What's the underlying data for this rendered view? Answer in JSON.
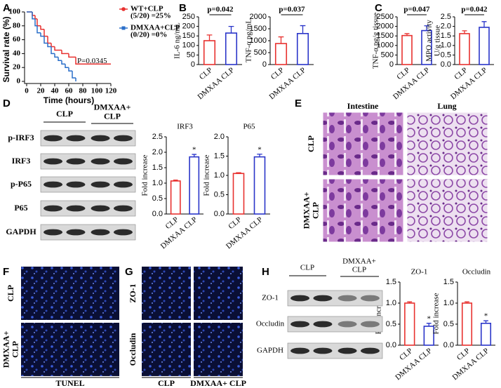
{
  "panel_labels": [
    "A",
    "B",
    "C",
    "D",
    "E",
    "F",
    "G",
    "H"
  ],
  "chart_data": [
    {
      "type": "step",
      "ylabel": "Survival rate (%)",
      "xlabel": "Time (hours)",
      "xlim": [
        0,
        120
      ],
      "ylim": [
        0,
        100
      ],
      "xticks": [
        0,
        20,
        40,
        60,
        80,
        100,
        120
      ],
      "yticks": [
        0,
        20,
        40,
        60,
        80,
        100
      ],
      "annotation": "P=0.0345",
      "series": [
        {
          "name": "WT+CLP",
          "note": "(5/20) =25%",
          "color": "#e8312f",
          "marker": "circle",
          "x": [
            0,
            8,
            12,
            15,
            20,
            25,
            30,
            35,
            40,
            50,
            60,
            70,
            120
          ],
          "values": [
            100,
            95,
            90,
            80,
            75,
            65,
            55,
            50,
            45,
            40,
            35,
            25,
            25
          ]
        },
        {
          "name": "DMXAA+CLP",
          "note": "(0/20) =0%",
          "color": "#2a6fc9",
          "marker": "square",
          "x": [
            0,
            8,
            12,
            15,
            20,
            25,
            30,
            35,
            40,
            45,
            50,
            55,
            60,
            65,
            70
          ],
          "values": [
            100,
            90,
            80,
            70,
            65,
            55,
            50,
            40,
            35,
            30,
            25,
            20,
            15,
            5,
            0
          ]
        }
      ]
    },
    {
      "type": "bar",
      "ylabel": [
        "IL-6 ng/mL"
      ],
      "categories": [
        "CLP",
        "DMXAA CLP"
      ],
      "colors": [
        "#e8312f",
        "#2a35c9"
      ],
      "values": [
        125,
        165
      ],
      "errors": [
        30,
        35
      ],
      "ylim": [
        0,
        250
      ],
      "yticks": [
        0,
        50,
        100,
        150,
        200,
        250
      ],
      "annotation": "p=0.042"
    },
    {
      "type": "bar",
      "ylabel": [
        "TNF-α pg/mL"
      ],
      "categories": [
        "CLP",
        "DMXAA CLP"
      ],
      "colors": [
        "#e8312f",
        "#2a35c9"
      ],
      "values": [
        880,
        1300
      ],
      "errors": [
        280,
        330
      ],
      "ylim": [
        0,
        2000
      ],
      "yticks": [
        0,
        500,
        1000,
        1500,
        2000
      ],
      "annotation": "p=0.037"
    },
    {
      "type": "bar",
      "ylabel": [
        "TNF-α pg/g tissue"
      ],
      "categories": [
        "CLP",
        "DMXAA CLP"
      ],
      "colors": [
        "#e8312f",
        "#2a35c9"
      ],
      "values": [
        1520,
        1780
      ],
      "errors": [
        100,
        250
      ],
      "ylim": [
        0,
        2500
      ],
      "yticks": [
        0,
        500,
        1000,
        1500,
        2000,
        2500
      ],
      "annotation": "p=0.047"
    },
    {
      "type": "bar",
      "ylabel": [
        "MPO activity",
        "U/g tissue"
      ],
      "categories": [
        "CLP",
        "DMXAA CLP"
      ],
      "colors": [
        "#e8312f",
        "#2a35c9"
      ],
      "values": [
        1.62,
        1.95
      ],
      "errors": [
        0.15,
        0.3
      ],
      "ylim": [
        0,
        2.5
      ],
      "yticks": [
        {
          "value": 0,
          "label": "0.0"
        },
        0.5,
        {
          "value": 1,
          "label": "1.0"
        },
        1.5,
        {
          "value": 2,
          "label": "2.0"
        },
        2.5
      ],
      "annotation": "p=0.042"
    },
    {
      "type": "bar",
      "title": "IRF3",
      "ylabel": [
        "Fold increase"
      ],
      "categories": [
        "CLP",
        "DMXAA CLP"
      ],
      "colors": [
        "#e8312f",
        "#2a35c9"
      ],
      "values": [
        1.07,
        1.85
      ],
      "errors": [
        0.03,
        0.08
      ],
      "ylim": [
        0,
        2.5
      ],
      "yticks": [
        {
          "value": 0,
          "label": "0.0"
        },
        0.5,
        {
          "value": 1,
          "label": "1.0"
        },
        1.5,
        {
          "value": 2,
          "label": "2.0"
        },
        2.5
      ],
      "annotation": "*"
    },
    {
      "type": "bar",
      "title": "P65",
      "ylabel": [
        "Fold increase"
      ],
      "categories": [
        "CLP",
        "DMXAA CLP"
      ],
      "colors": [
        "#e8312f",
        "#2a35c9"
      ],
      "values": [
        1.05,
        1.48
      ],
      "errors": [
        0.02,
        0.07
      ],
      "ylim": [
        0,
        2
      ],
      "yticks": [
        {
          "value": 0,
          "label": "0.0"
        },
        0.5,
        {
          "value": 1,
          "label": "1.0"
        },
        1.5,
        {
          "value": 2,
          "label": "2.0"
        }
      ],
      "annotation": "*"
    },
    {
      "type": "bar",
      "title": "ZO-1",
      "ylabel": [
        "Fold increase"
      ],
      "categories": [
        "CLP",
        "DMXAA CLP"
      ],
      "colors": [
        "#e8312f",
        "#2a35c9"
      ],
      "values": [
        1.0,
        0.45
      ],
      "errors": [
        0.03,
        0.07
      ],
      "ylim": [
        0,
        1.5
      ],
      "yticks": [
        {
          "value": 0,
          "label": "0.0"
        },
        0.5,
        {
          "value": 1,
          "label": "1.0"
        },
        1.5
      ],
      "annotation": "*"
    },
    {
      "type": "bar",
      "title": "Occludin",
      "ylabel": [
        "Fold increase"
      ],
      "categories": [
        "CLP",
        "DMXAA CLP"
      ],
      "colors": [
        "#e8312f",
        "#2a35c9"
      ],
      "values": [
        1.0,
        0.52
      ],
      "errors": [
        0.03,
        0.06
      ],
      "ylim": [
        0,
        1.5
      ],
      "yticks": [
        {
          "value": 0,
          "label": "0.0"
        },
        0.5,
        {
          "value": 1,
          "label": "1.0"
        },
        1.5
      ],
      "annotation": "*"
    }
  ],
  "panel_D": {
    "columns": [
      [
        "CLP"
      ],
      [
        "DMXAA+",
        "CLP"
      ]
    ],
    "rows": [
      "p-IRF3",
      "IRF3",
      "p-P65",
      "P65",
      "GAPDH"
    ]
  },
  "panel_E": {
    "columns": [
      [
        "Intestine"
      ],
      [
        "Lung"
      ]
    ],
    "rows": [
      [
        "CLP"
      ],
      [
        "DMXAA+",
        "CLP"
      ]
    ]
  },
  "panel_F": {
    "rows": [
      [
        "CLP"
      ],
      [
        "DMXAA+",
        "CLP"
      ]
    ],
    "caption": "TUNEL"
  },
  "panel_G": {
    "columns": [
      [
        "CLP"
      ],
      [
        "DMXAA+ CLP"
      ]
    ],
    "rows": [
      [
        "ZO-1"
      ],
      [
        "Occludin"
      ]
    ]
  },
  "panel_H": {
    "columns": [
      [
        "CLP"
      ],
      [
        "DMXAA+",
        "CLP"
      ]
    ],
    "rows": [
      "ZO-1",
      "Occludin",
      "GAPDH"
    ]
  }
}
